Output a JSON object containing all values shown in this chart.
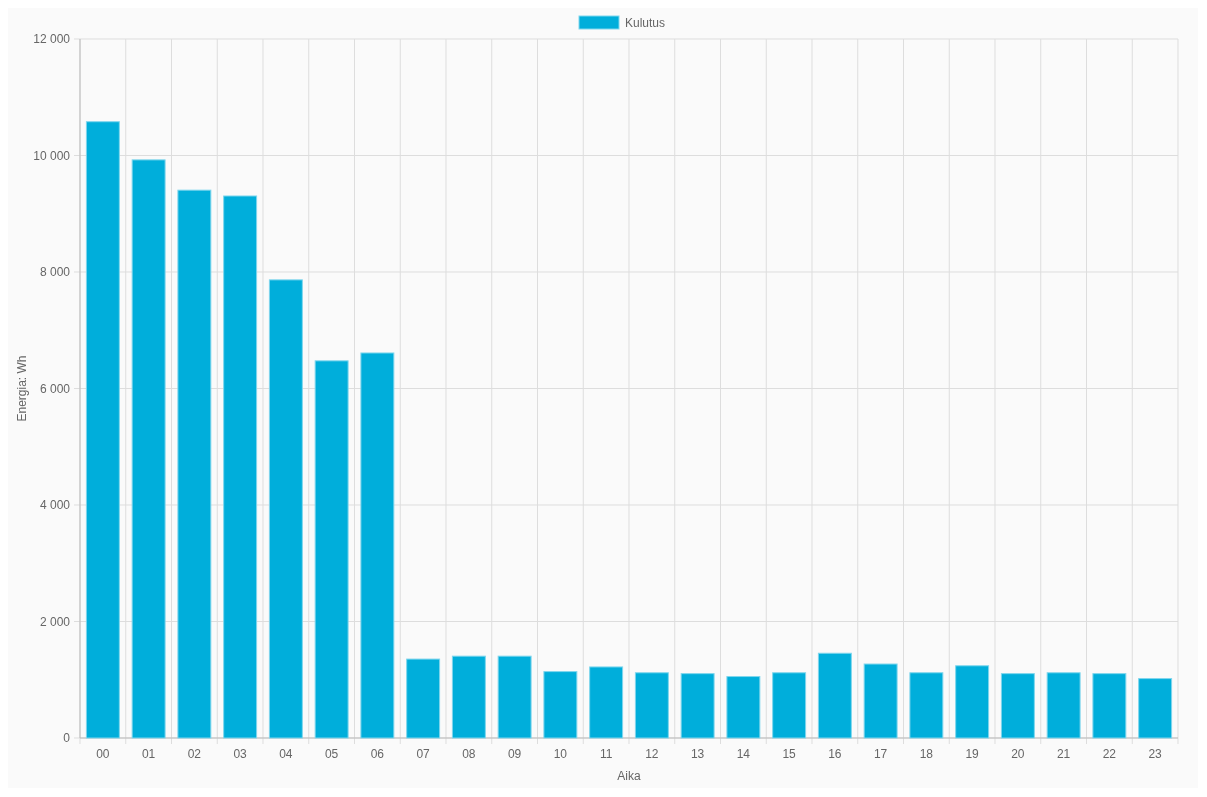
{
  "chart_data": {
    "type": "bar",
    "xlabel": "Aika",
    "ylabel": "Energia: Wh",
    "categories": [
      "00",
      "01",
      "02",
      "03",
      "04",
      "05",
      "06",
      "07",
      "08",
      "09",
      "10",
      "11",
      "12",
      "13",
      "14",
      "15",
      "16",
      "17",
      "18",
      "19",
      "20",
      "21",
      "22",
      "23"
    ],
    "series": [
      {
        "name": "Kulutus",
        "color": "#00aedb",
        "values": [
          10580,
          9925,
          9405,
          9305,
          7865,
          6475,
          6610,
          1355,
          1405,
          1405,
          1140,
          1220,
          1120,
          1105,
          1055,
          1120,
          1455,
          1270,
          1120,
          1240,
          1105,
          1120,
          1105,
          1020
        ]
      }
    ],
    "ylim": [
      0,
      12000
    ],
    "yticks": [
      {
        "value": 0,
        "label": "0"
      },
      {
        "value": 2000,
        "label": "2 000"
      },
      {
        "value": 4000,
        "label": "4 000"
      },
      {
        "value": 6000,
        "label": "6 000"
      },
      {
        "value": 8000,
        "label": "8 000"
      },
      {
        "value": 10000,
        "label": "10 000"
      },
      {
        "value": 12000,
        "label": "12 000"
      }
    ],
    "grid": true,
    "legend": "top"
  }
}
